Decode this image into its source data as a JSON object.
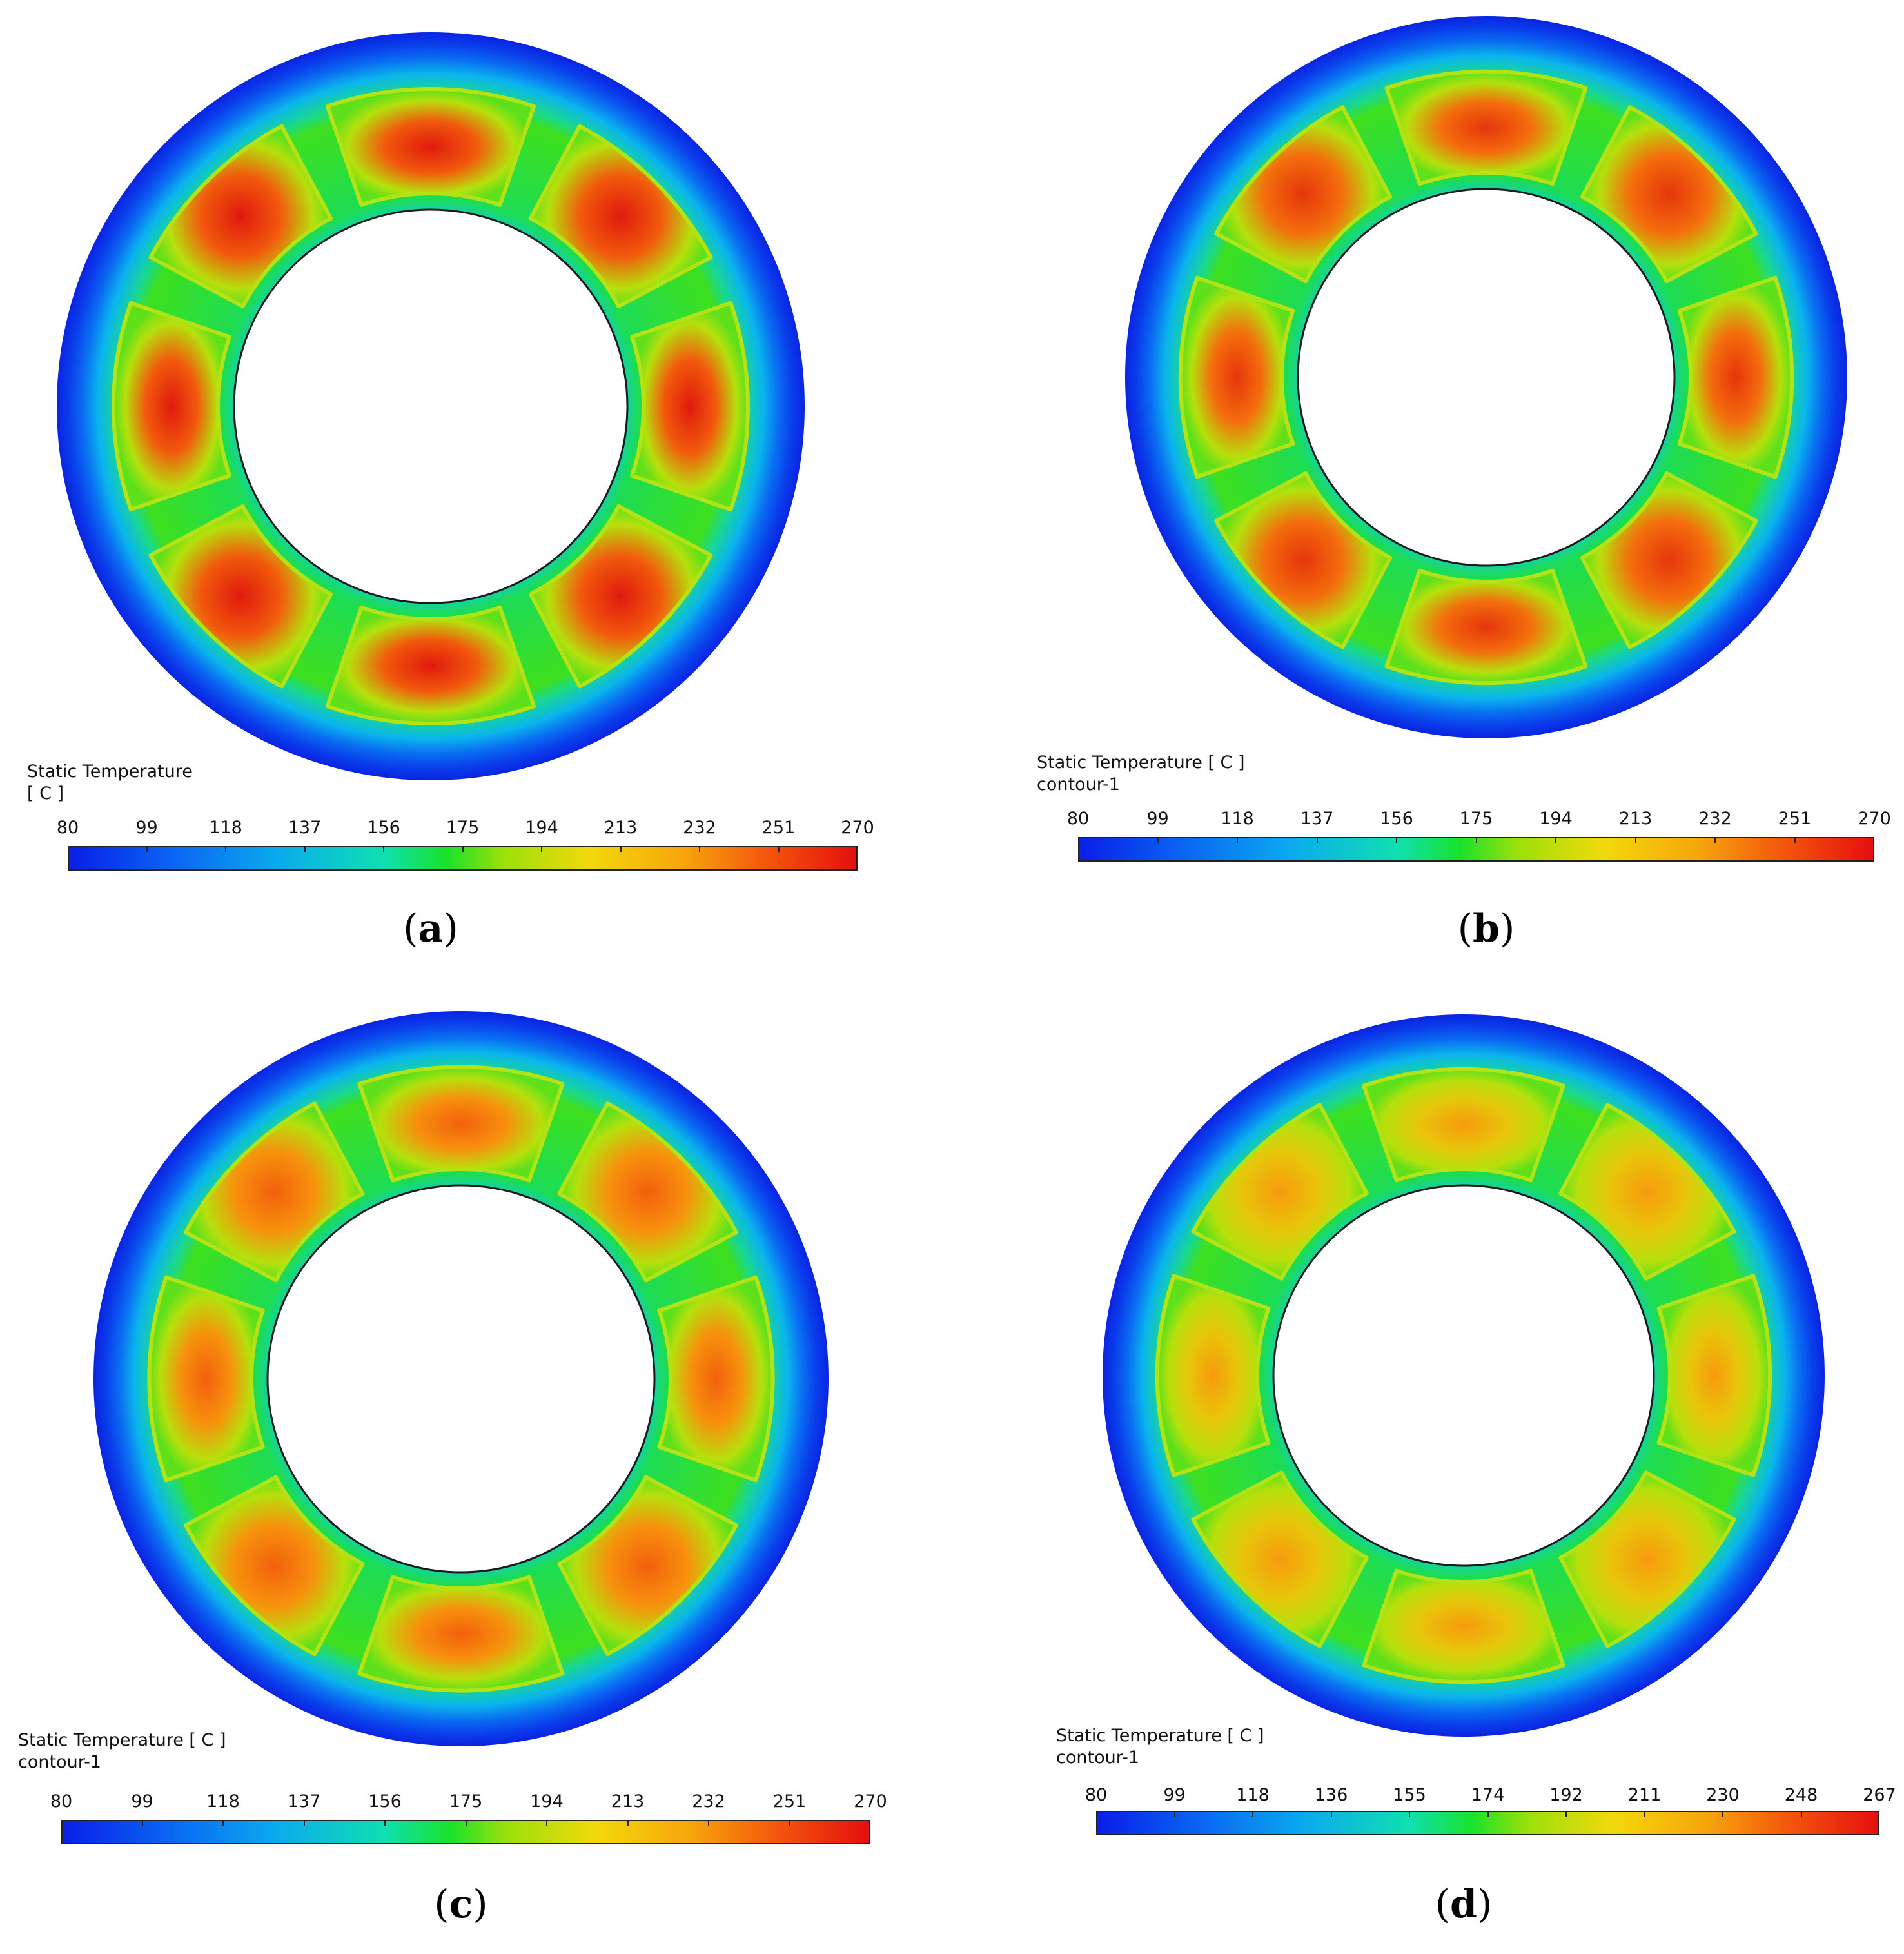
{
  "figures": [
    {
      "id": "a",
      "legend_title": "Static Temperature\n[ C ]",
      "ticks": [
        "80",
        "99",
        "118",
        "137",
        "156",
        "175",
        "194",
        "213",
        "232",
        "251",
        "270"
      ],
      "caption_open": "(",
      "caption_letter": "a",
      "caption_close": ")",
      "hot_spot_color": "#e01a0e",
      "mid_color": "#f25a0c"
    },
    {
      "id": "b",
      "legend_title": "Static Temperature [ C ]\ncontour-1",
      "ticks": [
        "80",
        "99",
        "118",
        "137",
        "156",
        "175",
        "194",
        "213",
        "232",
        "251",
        "270"
      ],
      "caption_open": "(",
      "caption_letter": "b",
      "caption_close": ")",
      "hot_spot_color": "#e6360d",
      "mid_color": "#f46d0c"
    },
    {
      "id": "c",
      "legend_title": "Static Temperature [ C ]\ncontour-1",
      "ticks": [
        "80",
        "99",
        "118",
        "137",
        "156",
        "175",
        "194",
        "213",
        "232",
        "251",
        "270"
      ],
      "caption_open": "(",
      "caption_letter": "c",
      "caption_close": ")",
      "hot_spot_color": "#f2600c",
      "mid_color": "#f7910c"
    },
    {
      "id": "d",
      "legend_title": "Static Temperature [ C ]\ncontour-1",
      "ticks": [
        "80",
        "99",
        "118",
        "136",
        "155",
        "174",
        "192",
        "211",
        "230",
        "248",
        "267"
      ],
      "caption_open": "(",
      "caption_letter": "d",
      "caption_close": ")",
      "hot_spot_color": "#f79a0c",
      "mid_color": "#e7c60a"
    }
  ]
}
